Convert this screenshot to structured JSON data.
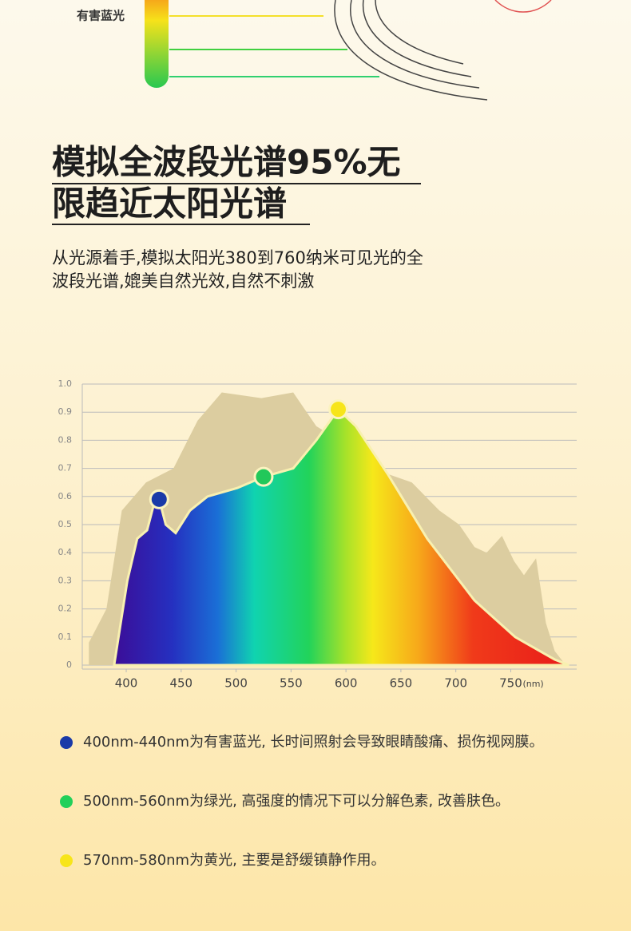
{
  "top_label": "有害蓝光",
  "headline": [
    "模拟全波段光谱95%无",
    "限趋近太阳光谱"
  ],
  "description": [
    "从光源着手,模拟太阳光380到760纳米可见光的全",
    "波段光谱,媲美自然光效,自然不刺激"
  ],
  "chart_data": {
    "type": "area",
    "xlim": [
      360,
      810
    ],
    "ylim": [
      0,
      1
    ],
    "xticks": [
      400,
      450,
      500,
      550,
      600,
      650,
      700,
      750
    ],
    "x_label": "(nm)",
    "yticks": [
      0,
      0.1,
      0.2,
      0.3,
      0.4,
      0.5,
      0.6,
      0.7,
      0.8,
      0.9,
      {
        "value": 1,
        "label": "1.0"
      }
    ],
    "grid": true,
    "series": [
      {
        "color": "#dccda0",
        "x": [
          366,
          382,
          396,
          418,
          443,
          465,
          487,
          523,
          552,
          573,
          602,
          638,
          660,
          685,
          703,
          717,
          728,
          742,
          753,
          762,
          773,
          782,
          790,
          800
        ],
        "values": [
          0.08,
          0.2,
          0.55,
          0.65,
          0.7,
          0.87,
          0.97,
          0.95,
          0.97,
          0.85,
          0.78,
          0.68,
          0.65,
          0.55,
          0.5,
          0.42,
          0.4,
          0.46,
          0.37,
          0.32,
          0.38,
          0.15,
          0.05,
          0
        ]
      },
      {
        "color": "spectrum",
        "x": [
          389,
          401,
          410,
          419,
          425,
          430,
          436,
          445,
          458,
          474,
          501,
          525,
          552,
          573,
          593,
          609,
          638,
          674,
          717,
          754,
          790,
          803
        ],
        "values": [
          0,
          0.3,
          0.45,
          0.48,
          0.57,
          0.59,
          0.5,
          0.47,
          0.55,
          0.6,
          0.63,
          0.67,
          0.7,
          0.8,
          0.91,
          0.85,
          0.68,
          0.45,
          0.23,
          0.1,
          0.02,
          0
        ]
      }
    ],
    "markers": {
      "x": [
        430,
        525,
        593
      ],
      "values": [
        0.59,
        0.67,
        0.91
      ],
      "colors": [
        "#1a3aa8",
        "#22c85a",
        "#f7e51a"
      ]
    }
  },
  "notes": [
    {
      "color": "#1a3aa8",
      "text": "400nm-440nm为有害蓝光, 长时间照射会导致眼睛酸痛、损伤视网膜。"
    },
    {
      "color": "#22d05a",
      "text": "500nm-560nm为绿光, 高强度的情况下可以分解色素, 改善肤色。"
    },
    {
      "color": "#f7e51a",
      "text": "570nm-580nm为黄光, 主要是舒缓镇静作用。"
    }
  ]
}
